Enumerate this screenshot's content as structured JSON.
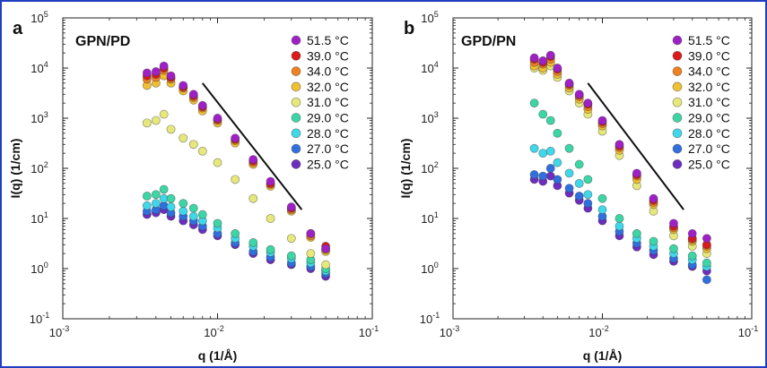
{
  "chart_data": [
    {
      "type": "scatter",
      "panel_label": "a",
      "sample_label": "GPN/PD",
      "xlabel": "q (1/Å)",
      "ylabel": "I(q) (1/cm)",
      "x_scale": "log",
      "y_scale": "log",
      "xlim": [
        0.001,
        0.1
      ],
      "ylim": [
        0.1,
        100000
      ],
      "x_ticks": [
        {
          "value": 0.001,
          "base": "10",
          "exp": "-3"
        },
        {
          "value": 0.01,
          "base": "10",
          "exp": "-2"
        },
        {
          "value": 0.1,
          "base": "10",
          "exp": "-1"
        }
      ],
      "y_ticks": [
        {
          "value": 0.1,
          "base": "10",
          "exp": "-1"
        },
        {
          "value": 1,
          "base": "10",
          "exp": "0"
        },
        {
          "value": 10,
          "base": "10",
          "exp": "1"
        },
        {
          "value": 100,
          "base": "10",
          "exp": "2"
        },
        {
          "value": 1000,
          "base": "10",
          "exp": "3"
        },
        {
          "value": 10000,
          "base": "10",
          "exp": "4"
        },
        {
          "value": 100000,
          "base": "10",
          "exp": "5"
        }
      ],
      "legend_position": "top-right",
      "guide_line": {
        "x": [
          0.008,
          0.035
        ],
        "y": [
          5000,
          15
        ]
      },
      "series": [
        {
          "name": "51.5 °C",
          "color": "#a020c8",
          "x": [
            0.0035,
            0.004,
            0.0045,
            0.005,
            0.006,
            0.007,
            0.008,
            0.01,
            0.013,
            0.017,
            0.022,
            0.03,
            0.04,
            0.05
          ],
          "y": [
            8000,
            8500,
            11000,
            7000,
            4500,
            3000,
            1800,
            1000,
            400,
            150,
            55,
            17,
            5,
            2.5
          ]
        },
        {
          "name": "39.0 °C",
          "color": "#dd1a1a",
          "x": [
            0.0035,
            0.004,
            0.0045,
            0.005,
            0.006,
            0.007,
            0.008,
            0.01,
            0.013,
            0.017,
            0.022,
            0.03,
            0.04,
            0.05
          ],
          "y": [
            7000,
            7500,
            10000,
            6500,
            4200,
            2800,
            1700,
            950,
            380,
            140,
            50,
            16,
            5,
            2.8
          ]
        },
        {
          "name": "34.0 °C",
          "color": "#f08020",
          "x": [
            0.0035,
            0.004,
            0.0045,
            0.005,
            0.006,
            0.007,
            0.008,
            0.01,
            0.013,
            0.017,
            0.022,
            0.03,
            0.04,
            0.05
          ],
          "y": [
            6000,
            6500,
            9000,
            6000,
            4000,
            2600,
            1600,
            900,
            360,
            130,
            48,
            15,
            4.5,
            2.4
          ]
        },
        {
          "name": "32.0 °C",
          "color": "#f0c030",
          "x": [
            0.0035,
            0.004,
            0.0045,
            0.005,
            0.006,
            0.007,
            0.008,
            0.01,
            0.013,
            0.017,
            0.022,
            0.03,
            0.04,
            0.05
          ],
          "y": [
            4500,
            5000,
            7000,
            5000,
            3500,
            2300,
            1400,
            800,
            320,
            120,
            44,
            14,
            4.2,
            2.2
          ]
        },
        {
          "name": "31.0 °C",
          "color": "#e6e87a",
          "x": [
            0.0035,
            0.004,
            0.0045,
            0.005,
            0.006,
            0.007,
            0.008,
            0.01,
            0.013,
            0.017,
            0.022,
            0.03,
            0.04,
            0.05
          ],
          "y": [
            800,
            900,
            1200,
            600,
            400,
            300,
            220,
            130,
            60,
            25,
            10,
            4,
            2,
            1.2
          ]
        },
        {
          "name": "29.0 °C",
          "color": "#3cd6a6",
          "x": [
            0.0035,
            0.004,
            0.0045,
            0.005,
            0.006,
            0.007,
            0.008,
            0.01,
            0.013,
            0.017,
            0.022,
            0.03,
            0.04,
            0.05
          ],
          "y": [
            28,
            30,
            38,
            25,
            20,
            16,
            12,
            8,
            5,
            3.3,
            2.4,
            1.8,
            1.5,
            1.0
          ]
        },
        {
          "name": "28.0 °C",
          "color": "#3fd8ea",
          "x": [
            0.0035,
            0.004,
            0.0045,
            0.005,
            0.006,
            0.007,
            0.008,
            0.01,
            0.013,
            0.017,
            0.022,
            0.03,
            0.04,
            0.05
          ],
          "y": [
            18,
            20,
            25,
            17,
            14,
            11,
            9,
            6.5,
            4,
            2.8,
            2.1,
            1.6,
            1.3,
            0.9
          ]
        },
        {
          "name": "27.0 °C",
          "color": "#2f6fe0",
          "x": [
            0.0035,
            0.004,
            0.0045,
            0.005,
            0.006,
            0.007,
            0.008,
            0.01,
            0.013,
            0.017,
            0.022,
            0.03,
            0.04,
            0.05
          ],
          "y": [
            14,
            15,
            18,
            13,
            11,
            9,
            7,
            5,
            3.3,
            2.2,
            1.7,
            1.3,
            1.1,
            0.8
          ]
        },
        {
          "name": "25.0 °C",
          "color": "#6e2cc0",
          "x": [
            0.0035,
            0.004,
            0.0045,
            0.005,
            0.006,
            0.007,
            0.008,
            0.01,
            0.013,
            0.017,
            0.022,
            0.03,
            0.04,
            0.05
          ],
          "y": [
            12,
            13,
            15,
            11,
            9,
            7.5,
            6,
            4.5,
            3,
            2,
            1.5,
            1.2,
            1.0,
            0.7
          ]
        }
      ]
    },
    {
      "type": "scatter",
      "panel_label": "b",
      "sample_label": "GPD/PN",
      "xlabel": "q (1/Å)",
      "ylabel": "I(q) (1/cm)",
      "x_scale": "log",
      "y_scale": "log",
      "xlim": [
        0.001,
        0.1
      ],
      "ylim": [
        0.1,
        100000
      ],
      "x_ticks": [
        {
          "value": 0.001,
          "base": "10",
          "exp": "-3"
        },
        {
          "value": 0.01,
          "base": "10",
          "exp": "-2"
        },
        {
          "value": 0.1,
          "base": "10",
          "exp": "-1"
        }
      ],
      "y_ticks": [
        {
          "value": 0.1,
          "base": "10",
          "exp": "-1"
        },
        {
          "value": 1,
          "base": "10",
          "exp": "0"
        },
        {
          "value": 10,
          "base": "10",
          "exp": "1"
        },
        {
          "value": 100,
          "base": "10",
          "exp": "2"
        },
        {
          "value": 1000,
          "base": "10",
          "exp": "3"
        },
        {
          "value": 10000,
          "base": "10",
          "exp": "4"
        },
        {
          "value": 100000,
          "base": "10",
          "exp": "5"
        }
      ],
      "legend_position": "top-right",
      "guide_line": {
        "x": [
          0.008,
          0.035
        ],
        "y": [
          5000,
          15
        ]
      },
      "series": [
        {
          "name": "51.5 °C",
          "color": "#a020c8",
          "x": [
            0.0035,
            0.004,
            0.0045,
            0.005,
            0.006,
            0.007,
            0.008,
            0.01,
            0.013,
            0.017,
            0.022,
            0.03,
            0.04,
            0.05
          ],
          "y": [
            16000,
            14000,
            18000,
            10000,
            5000,
            3000,
            2000,
            900,
            300,
            80,
            25,
            8,
            5,
            4
          ]
        },
        {
          "name": "39.0 °C",
          "color": "#dd1a1a",
          "x": [
            0.0035,
            0.004,
            0.0045,
            0.005,
            0.006,
            0.007,
            0.008,
            0.01,
            0.013,
            0.017,
            0.022,
            0.03,
            0.04,
            0.05
          ],
          "y": [
            15000,
            13000,
            17000,
            9500,
            4800,
            2900,
            1900,
            850,
            280,
            75,
            23,
            7,
            4,
            3
          ]
        },
        {
          "name": "34.0 °C",
          "color": "#f08020",
          "x": [
            0.0035,
            0.004,
            0.0045,
            0.005,
            0.006,
            0.007,
            0.008,
            0.01,
            0.013,
            0.017,
            0.022,
            0.03,
            0.04,
            0.05
          ],
          "y": [
            13000,
            12000,
            15000,
            8500,
            4500,
            2700,
            1700,
            780,
            260,
            70,
            21,
            6.5,
            3.8,
            2.8
          ]
        },
        {
          "name": "32.0 °C",
          "color": "#f0c030",
          "x": [
            0.0035,
            0.004,
            0.0045,
            0.005,
            0.006,
            0.007,
            0.008,
            0.01,
            0.013,
            0.017,
            0.022,
            0.03,
            0.04,
            0.05
          ],
          "y": [
            11000,
            10000,
            13000,
            7500,
            4000,
            2400,
            1500,
            700,
            230,
            60,
            19,
            6,
            3.5,
            2.5
          ]
        },
        {
          "name": "31.0 °C",
          "color": "#e6e87a",
          "x": [
            0.0035,
            0.004,
            0.0045,
            0.005,
            0.006,
            0.007,
            0.008,
            0.01,
            0.013,
            0.017,
            0.022,
            0.03,
            0.04,
            0.05
          ],
          "y": [
            10000,
            9000,
            11000,
            6500,
            3500,
            2000,
            1200,
            550,
            180,
            45,
            14,
            4.5,
            2.8,
            2
          ]
        },
        {
          "name": "29.0 °C",
          "color": "#3cd6a6",
          "x": [
            0.0035,
            0.004,
            0.0045,
            0.005,
            0.006,
            0.007,
            0.008,
            0.01,
            0.013,
            0.017,
            0.022,
            0.03,
            0.04,
            0.05
          ],
          "y": [
            2000,
            1200,
            900,
            500,
            250,
            120,
            60,
            25,
            10,
            5,
            3.5,
            2.5,
            1.8,
            1.3
          ]
        },
        {
          "name": "28.0 °C",
          "color": "#3fd8ea",
          "x": [
            0.0035,
            0.004,
            0.0045,
            0.005,
            0.006,
            0.007,
            0.008,
            0.01,
            0.013,
            0.017,
            0.022,
            0.03,
            0.04,
            0.05
          ],
          "y": [
            250,
            200,
            220,
            130,
            80,
            50,
            30,
            15,
            7,
            4,
            2.8,
            2,
            1.5,
            1.1
          ]
        },
        {
          "name": "27.0 °C",
          "color": "#2f6fe0",
          "x": [
            0.0035,
            0.004,
            0.0045,
            0.005,
            0.006,
            0.007,
            0.008,
            0.01,
            0.013,
            0.017,
            0.022,
            0.03,
            0.04,
            0.05
          ],
          "y": [
            75,
            70,
            100,
            60,
            40,
            28,
            20,
            11,
            5.5,
            3.2,
            2.3,
            1.6,
            1.2,
            0.6
          ]
        },
        {
          "name": "25.0 °C",
          "color": "#6e2cc0",
          "x": [
            0.0035,
            0.004,
            0.0045,
            0.005,
            0.006,
            0.007,
            0.008,
            0.01,
            0.013,
            0.017,
            0.022,
            0.03,
            0.04,
            0.05
          ],
          "y": [
            60,
            55,
            70,
            45,
            32,
            23,
            16,
            9,
            4.5,
            2.7,
            1.9,
            1.4,
            1.1,
            0.9
          ]
        }
      ]
    }
  ]
}
